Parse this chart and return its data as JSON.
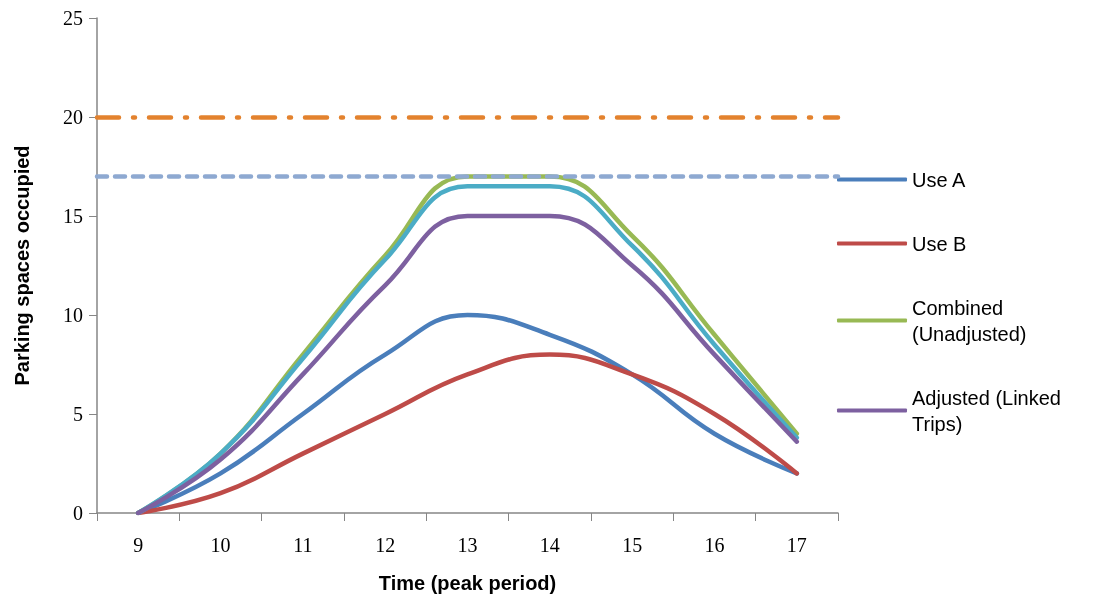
{
  "chart_data": {
    "type": "line",
    "xlabel": "Time (peak period)",
    "ylabel": "Parking spaces occupied",
    "categories": [
      "9",
      "10",
      "11",
      "12",
      "13",
      "14",
      "15",
      "16",
      "17"
    ],
    "series": [
      {
        "name": "Use A",
        "color": "#4a7ebb",
        "values": [
          0,
          2,
          5,
          8,
          10,
          9,
          7,
          4,
          2
        ]
      },
      {
        "name": "Use B",
        "color": "#be4b48",
        "values": [
          0,
          1,
          3,
          5,
          7,
          8,
          7,
          5,
          2
        ]
      },
      {
        "name": "Combined (Unadjusted)",
        "color": "#98b954",
        "values": [
          0,
          3,
          8,
          13,
          17,
          17,
          14,
          9,
          4
        ]
      },
      {
        "color": "#4bacc6",
        "values": [
          0,
          3,
          7.8,
          12.8,
          16.5,
          16.5,
          13.5,
          8.5,
          3.8
        ]
      },
      {
        "name": "Adjusted (Linked Trips)",
        "color": "#7d60a0",
        "values": [
          0,
          2.7,
          7,
          11.5,
          15,
          15,
          12.5,
          8,
          3.6
        ]
      }
    ],
    "ylim": [
      0,
      25
    ],
    "yticks": [
      0,
      5,
      10,
      15,
      20,
      25
    ],
    "ref_lines": [
      {
        "axis": "y",
        "value": 20,
        "color": "#e3822e",
        "line_style": "dashdot"
      },
      {
        "axis": "y",
        "value": 17,
        "color": "#8ea9d1",
        "line_style": "dashed"
      }
    ],
    "grid": false,
    "legend": "right",
    "marker": "none",
    "line_style": "solid"
  }
}
